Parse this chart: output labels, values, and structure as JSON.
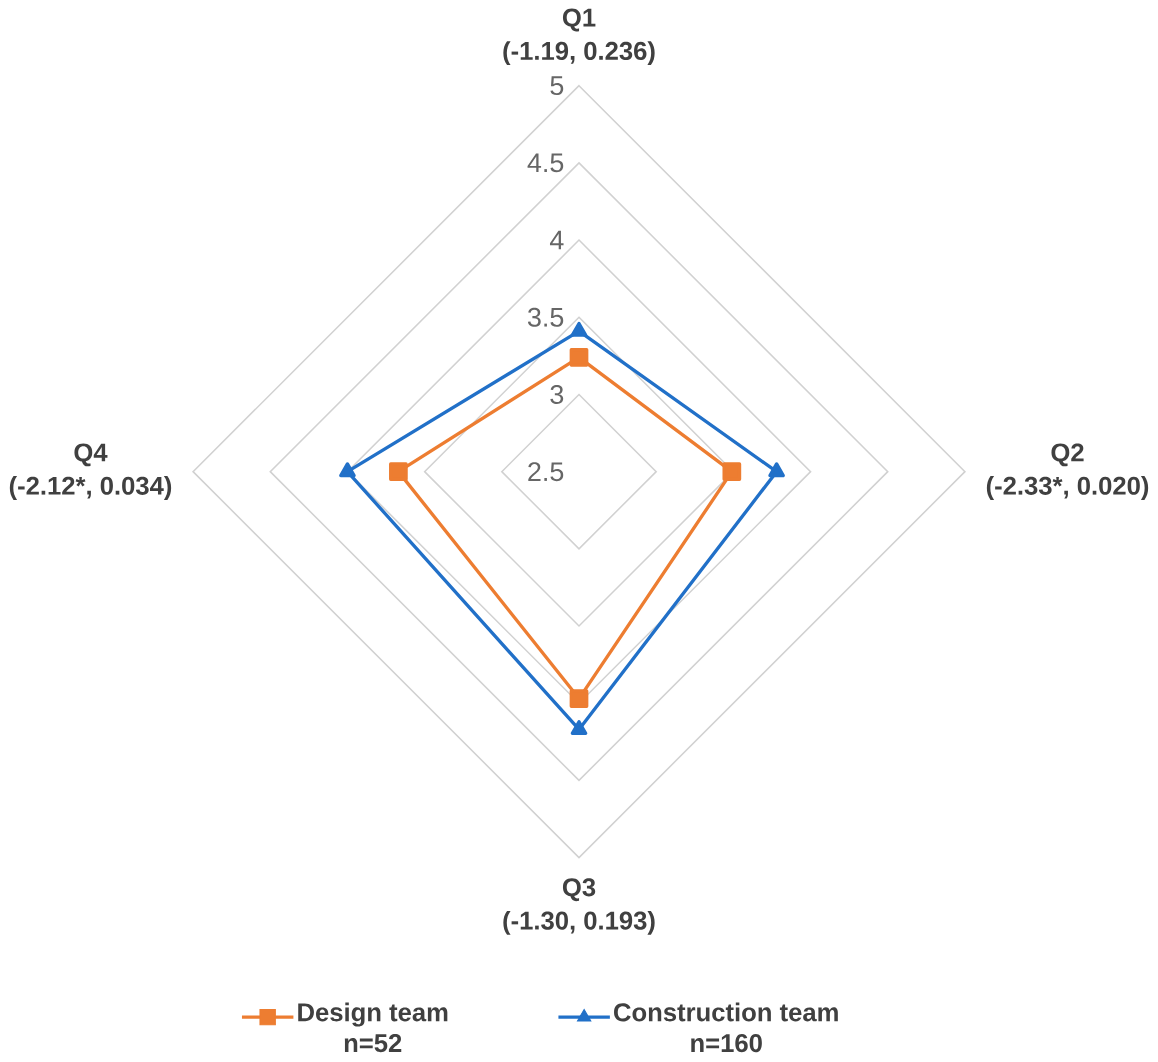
{
  "chart_data": {
    "type": "radar",
    "categories": [
      "Q1",
      "Q2",
      "Q3",
      "Q4"
    ],
    "ylim": [
      2.5,
      5
    ],
    "yticks": [
      2.5,
      3,
      3.5,
      4,
      4.5,
      5
    ],
    "grid": true,
    "legend": "bottom",
    "annotations": [
      "(-1.19, 0.236)",
      "(-2.33*, 0.020)",
      "(-1.30, 0.193)",
      "(-2.12*, 0.034)",
      "n=52",
      "n=160"
    ],
    "series": [
      {
        "name": "Design team",
        "color": "#ed7d31",
        "marker": "square",
        "values": [
          3.24,
          3.49,
          3.97,
          3.67
        ]
      },
      {
        "name": "Construction team",
        "color": "#2170c8",
        "marker": "triangle",
        "values": [
          3.41,
          3.78,
          4.17,
          4.0
        ]
      }
    ]
  }
}
